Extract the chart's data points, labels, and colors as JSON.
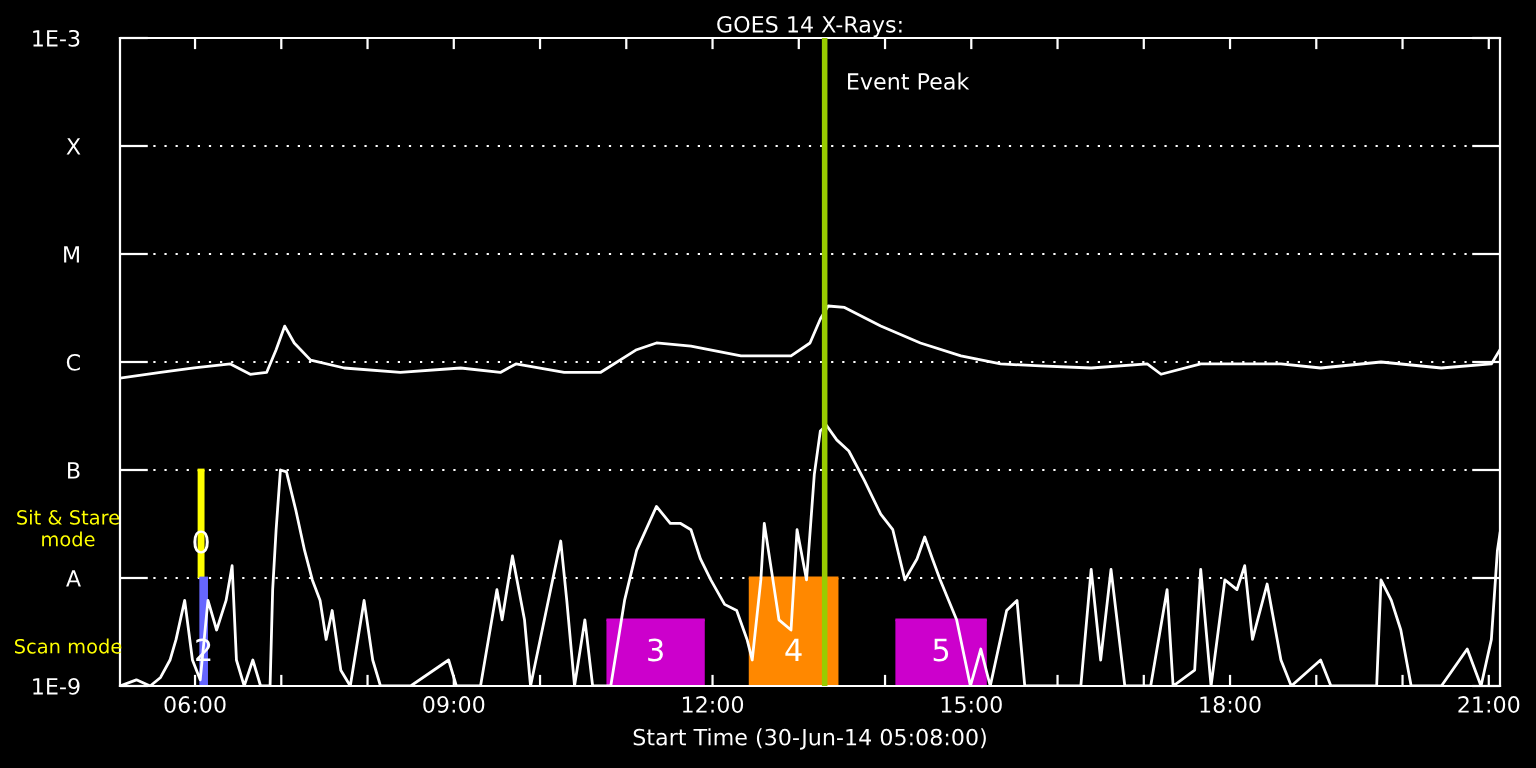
{
  "chart_data": {
    "type": "line",
    "title": "GOES 14 X-Rays:",
    "xlabel": "Start Time (30-Jun-14 05:08:00)",
    "log": "y",
    "grid": "y",
    "line_style": "solid",
    "marker": "none",
    "xlim": [
      5.13,
      21.13
    ],
    "xticks": [
      {
        "value": 6,
        "label": "06:00"
      },
      {
        "value": 7,
        "label": null
      },
      {
        "value": 8,
        "label": null
      },
      {
        "value": 9,
        "label": "09:00"
      },
      {
        "value": 10,
        "label": null
      },
      {
        "value": 11,
        "label": null
      },
      {
        "value": 12,
        "label": "12:00"
      },
      {
        "value": 13,
        "label": null
      },
      {
        "value": 14,
        "label": null
      },
      {
        "value": 15,
        "label": "15:00"
      },
      {
        "value": 16,
        "label": null
      },
      {
        "value": 17,
        "label": null
      },
      {
        "value": 18,
        "label": "18:00"
      },
      {
        "value": 19,
        "label": null
      },
      {
        "value": 20,
        "label": null
      },
      {
        "value": 21,
        "label": "21:00"
      }
    ],
    "ylim": [
      1e-09,
      0.001
    ],
    "yticks": [
      {
        "value": 1e-09,
        "label": "1E-9"
      },
      {
        "value": 1e-08,
        "label": "A"
      },
      {
        "value": 1e-07,
        "label": "B"
      },
      {
        "value": 1e-06,
        "label": "C"
      },
      {
        "value": 1e-05,
        "label": "M"
      },
      {
        "value": 0.0001,
        "label": "X"
      },
      {
        "value": 0.001,
        "label": "1E-3"
      }
    ],
    "ref_lines": [
      {
        "axis": "x",
        "value": 13.3,
        "label": "Event Peak",
        "color": "#99cc00"
      }
    ],
    "annotations": [
      "Sit & Stare\nmode",
      "Scan mode",
      {
        "text": "0",
        "x": 6.07,
        "y": 1e-08
      },
      {
        "text": "2",
        "x": 6.1,
        "y": 1e-09
      },
      {
        "text": "3",
        "x": 11.34,
        "y": 1e-09
      },
      {
        "text": "4",
        "x": 12.94,
        "y": 1e-09
      },
      {
        "text": "5",
        "x": 14.65,
        "y": 1e-09
      }
    ],
    "series": [
      {
        "color": "#ffffff",
        "x": [
          5.13,
          5.6,
          5.99,
          6.41,
          6.64,
          6.83,
          6.94,
          7.04,
          7.15,
          7.34,
          7.73,
          8.38,
          9.08,
          9.54,
          9.72,
          10.28,
          10.7,
          11.12,
          11.35,
          11.75,
          12.33,
          12.91,
          13.13,
          13.25,
          13.34,
          13.53,
          13.95,
          14.41,
          14.88,
          15.34,
          15.8,
          16.39,
          17.04,
          17.2,
          17.66,
          18.59,
          19.05,
          19.75,
          20.45,
          21.03,
          21.13
        ],
        "values": [
          7.1e-07,
          8e-07,
          8.8e-07,
          9.6e-07,
          7.7e-07,
          8e-07,
          1.3e-06,
          2.15e-06,
          1.5e-06,
          1.04e-06,
          8.8e-07,
          8e-07,
          8.8e-07,
          8e-07,
          9.6e-07,
          8e-07,
          8e-07,
          1.3e-06,
          1.5e-06,
          1.4e-06,
          1.14e-06,
          1.14e-06,
          1.5e-06,
          2.5e-06,
          3.3e-06,
          3.2e-06,
          2.15e-06,
          1.5e-06,
          1.14e-06,
          9.6e-07,
          9.2e-07,
          8.8e-07,
          9.6e-07,
          7.7e-07,
          9.6e-07,
          9.6e-07,
          8.8e-07,
          1e-06,
          8.8e-07,
          9.6e-07,
          1.3e-06
        ]
      },
      {
        "color": "#ffffff",
        "x": [
          5.13,
          5.32,
          5.48,
          5.6,
          5.71,
          5.78,
          5.88,
          5.97,
          6.06,
          6.15,
          6.25,
          6.36,
          6.43,
          6.48,
          6.57,
          6.67,
          6.76,
          6.87,
          6.9,
          6.94,
          6.99,
          7.06,
          7.17,
          7.27,
          7.36,
          7.45,
          7.52,
          7.59,
          7.69,
          7.8,
          7.96,
          8.06,
          8.15,
          8.5,
          8.94,
          9.03,
          9.31,
          9.5,
          9.56,
          9.68,
          9.82,
          9.89,
          10.24,
          10.31,
          10.4,
          10.52,
          10.61,
          10.82,
          10.98,
          11.12,
          11.35,
          11.51,
          11.63,
          11.75,
          11.86,
          11.98,
          12.14,
          12.28,
          12.4,
          12.46,
          12.56,
          12.6,
          12.7,
          12.77,
          12.91,
          12.98,
          13.09,
          13.18,
          13.25,
          13.32,
          13.44,
          13.58,
          13.76,
          13.95,
          14.09,
          14.23,
          14.37,
          14.46,
          14.55,
          14.64,
          14.83,
          14.99,
          15.11,
          15.22,
          15.41,
          15.53,
          15.62,
          16.27,
          16.39,
          16.5,
          16.62,
          16.78,
          17.08,
          17.27,
          17.34,
          17.59,
          17.66,
          17.78,
          17.94,
          18.08,
          18.17,
          18.26,
          18.43,
          18.59,
          18.71,
          19.05,
          19.17,
          19.7,
          19.75,
          19.87,
          19.98,
          20.1,
          20.45,
          20.75,
          20.91,
          21.03,
          21.1,
          21.13
        ],
        "values": [
          1e-09,
          1.14e-09,
          1e-09,
          1.2e-09,
          1.74e-09,
          2.7e-09,
          6.2e-09,
          1.74e-09,
          1.14e-09,
          6.2e-09,
          3.3e-09,
          6.2e-09,
          1.3e-08,
          1.74e-09,
          1e-09,
          1.74e-09,
          1e-09,
          1e-09,
          7.8e-09,
          2.8e-08,
          1e-07,
          9.6e-08,
          4.2e-08,
          1.8e-08,
          9.6e-09,
          6.2e-09,
          2.7e-09,
          5e-09,
          1.4e-09,
          1e-09,
          6.2e-09,
          1.74e-09,
          1e-09,
          1e-09,
          1.74e-09,
          1e-09,
          1e-09,
          7.8e-09,
          4.1e-09,
          1.6e-08,
          4.1e-09,
          1e-09,
          2.2e-08,
          6.2e-09,
          1e-09,
          4.1e-09,
          1e-09,
          1e-09,
          6.2e-09,
          1.8e-08,
          4.6e-08,
          3.2e-08,
          3.2e-08,
          2.8e-08,
          1.5e-08,
          9.6e-09,
          5.7e-09,
          5e-09,
          2.7e-09,
          1.74e-09,
          9.6e-09,
          3.2e-08,
          9.6e-09,
          4.1e-09,
          3.3e-09,
          2.8e-08,
          9.6e-09,
          9.1e-08,
          2.3e-07,
          2.6e-07,
          1.9e-07,
          1.5e-07,
          8e-08,
          3.9e-08,
          2.8e-08,
          9.6e-09,
          1.5e-08,
          2.4e-08,
          1.5e-08,
          9.6e-09,
          4.1e-09,
          1e-09,
          2.2e-09,
          1e-09,
          5e-09,
          6.2e-09,
          1e-09,
          1e-09,
          1.2e-08,
          1.74e-09,
          1.2e-08,
          1e-09,
          1e-09,
          7.8e-09,
          1e-09,
          1.4e-09,
          1.2e-08,
          1e-09,
          9.6e-09,
          7.8e-09,
          1.3e-08,
          2.7e-09,
          8.8e-09,
          1.74e-09,
          1e-09,
          1.74e-09,
          1e-09,
          1e-09,
          9.6e-09,
          6.2e-09,
          3.3e-09,
          1e-09,
          1e-09,
          2.2e-09,
          1e-09,
          2.7e-09,
          1.8e-08,
          2.6e-08
        ]
      },
      {
        "type": "bar",
        "x": [
          6.07,
          6.1,
          11.34,
          12.94,
          14.65
        ],
        "xerrors": [
          0.04,
          0.05,
          0.57,
          0.52,
          0.53
        ],
        "base": [
          1e-08,
          1e-09,
          1e-09,
          1e-09,
          1e-09
        ],
        "values": [
          9e-08,
          9e-09,
          3.1e-09,
          9e-09,
          3.1e-09
        ],
        "colors": [
          "#ffff00",
          "#6666ff",
          "#cc00cc",
          "#ff8800",
          "#cc00cc"
        ]
      }
    ]
  }
}
